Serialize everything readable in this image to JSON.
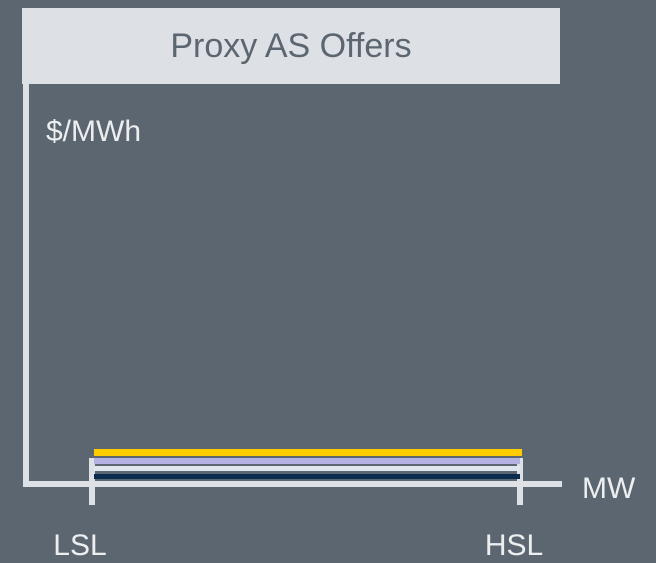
{
  "title": "Proxy AS Offers",
  "y_axis_label": "$/MWh",
  "x_axis_label": "MW",
  "x_ticks": [
    "LSL",
    "HSL"
  ]
}
